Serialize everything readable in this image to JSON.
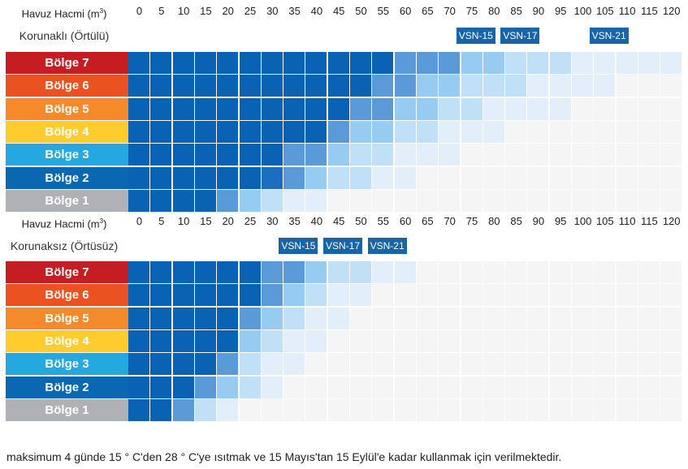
{
  "colors": {
    "levels": [
      "#f5f5f5",
      "#e2effa",
      "#c0e0f8",
      "#96ccf2",
      "#5a9ad8",
      "#1b6ec2",
      "#0a62b4"
    ],
    "zones": [
      "#b0b1b4",
      "#0a68b3",
      "#23a8df",
      "#ffcc2e",
      "#f58a2b",
      "#ea5321",
      "#c61d23"
    ],
    "badge": "#1764a8"
  },
  "chart_data": [
    {
      "type": "heatmap",
      "title": "Korunaklı (Örtülü)",
      "xlabel": "Havuz Hacmi (m³)",
      "x": [
        0,
        5,
        10,
        15,
        20,
        25,
        30,
        35,
        40,
        45,
        50,
        55,
        60,
        65,
        70,
        75,
        80,
        85,
        90,
        95,
        100,
        105,
        110,
        115,
        120
      ],
      "x_labels": [
        "0",
        "5",
        "10",
        "15",
        "20",
        "25",
        "30",
        "35",
        "40",
        "45",
        "50",
        "55",
        "60",
        "65",
        "70",
        "75",
        "80",
        "85",
        "90",
        "95",
        "100",
        "105",
        "110",
        "115",
        "120"
      ],
      "rows": [
        {
          "label": "Bölge 7",
          "values": [
            6,
            6,
            6,
            6,
            6,
            6,
            6,
            6,
            6,
            6,
            6,
            6,
            4,
            4,
            4,
            3,
            3,
            2,
            2,
            2,
            1,
            1,
            1,
            1,
            1
          ]
        },
        {
          "label": "Bölge 6",
          "values": [
            6,
            6,
            6,
            6,
            6,
            6,
            6,
            6,
            6,
            6,
            6,
            4,
            4,
            3,
            3,
            2,
            2,
            2,
            1,
            1,
            1,
            1,
            0,
            0,
            0
          ]
        },
        {
          "label": "Bölge 5",
          "values": [
            6,
            6,
            6,
            6,
            6,
            6,
            6,
            6,
            6,
            6,
            4,
            4,
            3,
            3,
            2,
            2,
            1,
            1,
            1,
            1,
            0,
            0,
            0,
            0,
            0
          ]
        },
        {
          "label": "Bölge 4",
          "values": [
            6,
            6,
            6,
            6,
            6,
            6,
            6,
            6,
            6,
            4,
            3,
            3,
            2,
            2,
            1,
            1,
            1,
            0,
            0,
            0,
            0,
            0,
            0,
            0,
            0
          ]
        },
        {
          "label": "Bölge 3",
          "values": [
            6,
            6,
            6,
            6,
            6,
            6,
            6,
            4,
            4,
            3,
            2,
            2,
            1,
            1,
            1,
            0,
            0,
            0,
            0,
            0,
            0,
            0,
            0,
            0,
            0
          ]
        },
        {
          "label": "Bölge 2",
          "values": [
            6,
            6,
            6,
            6,
            6,
            6,
            5,
            4,
            3,
            2,
            2,
            1,
            1,
            0,
            0,
            0,
            0,
            0,
            0,
            0,
            0,
            0,
            0,
            0,
            0
          ]
        },
        {
          "label": "Bölge 1",
          "values": [
            6,
            6,
            6,
            6,
            4,
            3,
            2,
            1,
            1,
            0,
            0,
            0,
            0,
            0,
            0,
            0,
            0,
            0,
            0,
            0,
            0,
            0,
            0,
            0,
            0
          ]
        }
      ],
      "annotations": [
        {
          "text": "VSN-15",
          "x": 80
        },
        {
          "text": "VSN-17",
          "x": 90
        },
        {
          "text": "VSN-21",
          "x": 110
        }
      ]
    },
    {
      "type": "heatmap",
      "title": "Korunaksız (Örtüsüz)",
      "xlabel": "Havuz Hacmi (m³)",
      "x": [
        0,
        5,
        10,
        15,
        20,
        25,
        30,
        35,
        40,
        45,
        50,
        55,
        60,
        65,
        70,
        75,
        80,
        85,
        90,
        95,
        100,
        105,
        110,
        115,
        120
      ],
      "x_labels": [
        "0",
        "5",
        "10",
        "15",
        "20",
        "25",
        "30",
        "35",
        "40",
        "45",
        "50",
        "55",
        "60",
        "65",
        "70",
        "75",
        "80",
        "85",
        "90",
        "95",
        "100",
        "105",
        "110",
        "115",
        "120"
      ],
      "rows": [
        {
          "label": "Bölge 7",
          "values": [
            6,
            6,
            6,
            6,
            6,
            6,
            4,
            4,
            3,
            2,
            2,
            1,
            1,
            0,
            0,
            0,
            0,
            0,
            0,
            0,
            0,
            0,
            0,
            0,
            0
          ]
        },
        {
          "label": "Bölge 6",
          "values": [
            6,
            6,
            6,
            6,
            6,
            6,
            4,
            3,
            2,
            1,
            1,
            0,
            0,
            0,
            0,
            0,
            0,
            0,
            0,
            0,
            0,
            0,
            0,
            0,
            0
          ]
        },
        {
          "label": "Bölge 5",
          "values": [
            6,
            6,
            6,
            6,
            6,
            4,
            3,
            2,
            1,
            1,
            0,
            0,
            0,
            0,
            0,
            0,
            0,
            0,
            0,
            0,
            0,
            0,
            0,
            0,
            0
          ]
        },
        {
          "label": "Bölge 4",
          "values": [
            6,
            6,
            6,
            6,
            6,
            3,
            2,
            1,
            1,
            0,
            0,
            0,
            0,
            0,
            0,
            0,
            0,
            0,
            0,
            0,
            0,
            0,
            0,
            0,
            0
          ]
        },
        {
          "label": "Bölge 3",
          "values": [
            6,
            6,
            6,
            6,
            4,
            2,
            1,
            1,
            0,
            0,
            0,
            0,
            0,
            0,
            0,
            0,
            0,
            0,
            0,
            0,
            0,
            0,
            0,
            0,
            0
          ]
        },
        {
          "label": "Bölge 2",
          "values": [
            6,
            6,
            6,
            4,
            3,
            2,
            1,
            0,
            0,
            0,
            0,
            0,
            0,
            0,
            0,
            0,
            0,
            0,
            0,
            0,
            0,
            0,
            0,
            0,
            0
          ]
        },
        {
          "label": "Bölge 1",
          "values": [
            6,
            6,
            4,
            2,
            1,
            0,
            0,
            0,
            0,
            0,
            0,
            0,
            0,
            0,
            0,
            0,
            0,
            0,
            0,
            0,
            0,
            0,
            0,
            0,
            0
          ]
        }
      ],
      "annotations": [
        {
          "text": "VSN-15",
          "x": 40
        },
        {
          "text": "VSN-17",
          "x": 50
        },
        {
          "text": "VSN-21",
          "x": 60
        }
      ]
    }
  ],
  "footer": "maksimum 4 günde 15 ° C'den 28 ° C'ye ısıtmak ve 15 Mayıs'tan 15 Eylül'e kadar kullanmak için verilmektedir."
}
